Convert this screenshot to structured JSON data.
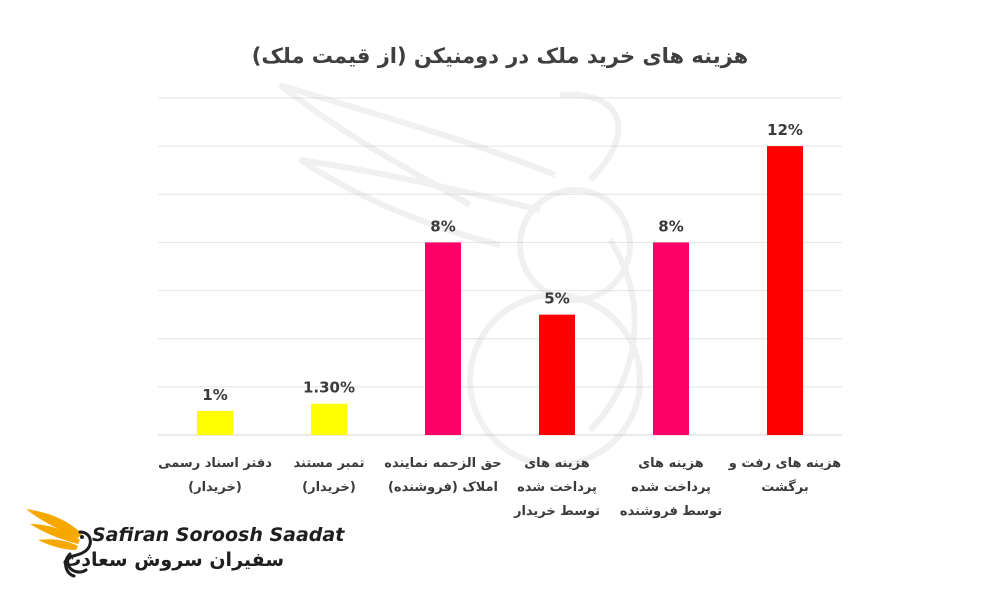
{
  "chart_data": {
    "type": "bar",
    "title": "هزینه های خرید ملک در دومنیکن (از قیمت ملک)",
    "categories": [
      [
        "دفتر اسناد رسمی",
        "(خریدار)"
      ],
      [
        "تمبر مستند",
        "(خریدار)"
      ],
      [
        "حق الزحمه نماینده",
        "املاک (فروشنده)"
      ],
      [
        "هزینه های",
        "پرداخت شده",
        "توسط خریدار"
      ],
      [
        "هزینه های",
        "پرداخت شده",
        "توسط فروشنده"
      ],
      [
        "هزینه های رفت و",
        "برگشت"
      ]
    ],
    "values": [
      1,
      1.3,
      8,
      5,
      8,
      12
    ],
    "data_labels": [
      "1%",
      "1.30%",
      "8%",
      "5%",
      "8%",
      "12%"
    ],
    "colors": [
      "#ffff00",
      "#ffff00",
      "#ff0066",
      "#ff0000",
      "#ff0066",
      "#ff0000"
    ],
    "ylim": [
      0,
      14
    ],
    "gridline_step": 2,
    "grid": true,
    "y_axis_labels": false
  },
  "branding": {
    "name_latin": "Safiran Soroosh Saadat",
    "name_persian": "سفیران سروش سعادت",
    "accent": "#f5a800",
    "watermark_color": "#bdbdbd"
  }
}
